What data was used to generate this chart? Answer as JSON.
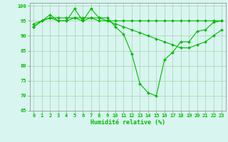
{
  "x": [
    0,
    1,
    2,
    3,
    4,
    5,
    6,
    7,
    8,
    9,
    10,
    11,
    12,
    13,
    14,
    15,
    16,
    17,
    18,
    19,
    20,
    21,
    22,
    23
  ],
  "line1": [
    93,
    95,
    97,
    95,
    95,
    99,
    95,
    99,
    96,
    96,
    93,
    90.5,
    84,
    74,
    71,
    70,
    82,
    84.5,
    88,
    88,
    91.5,
    92,
    94.5,
    95
  ],
  "line2": [
    93,
    95,
    96,
    95,
    95,
    96,
    95,
    96,
    95,
    95,
    94,
    93,
    92,
    91,
    90,
    89,
    88,
    87,
    86,
    86,
    87,
    88,
    90,
    92
  ],
  "line3": [
    94,
    95,
    96,
    96,
    96,
    96,
    96,
    96,
    96,
    95,
    95,
    95,
    95,
    95,
    95,
    95,
    95,
    95,
    95,
    95,
    95,
    95,
    95,
    95
  ],
  "line_color": "#00bb00",
  "bg_color": "#d8f5f0",
  "grid_color": "#99cc99",
  "xlabel": "Humidité relative (%)",
  "ylim": [
    65,
    101
  ],
  "xlim": [
    -0.5,
    23.5
  ],
  "yticks": [
    65,
    70,
    75,
    80,
    85,
    90,
    95,
    100
  ],
  "xticks": [
    0,
    1,
    2,
    3,
    4,
    5,
    6,
    7,
    8,
    9,
    10,
    11,
    12,
    13,
    14,
    15,
    16,
    17,
    18,
    19,
    20,
    21,
    22,
    23
  ],
  "tick_fontsize": 5.0,
  "xlabel_fontsize": 6.0
}
